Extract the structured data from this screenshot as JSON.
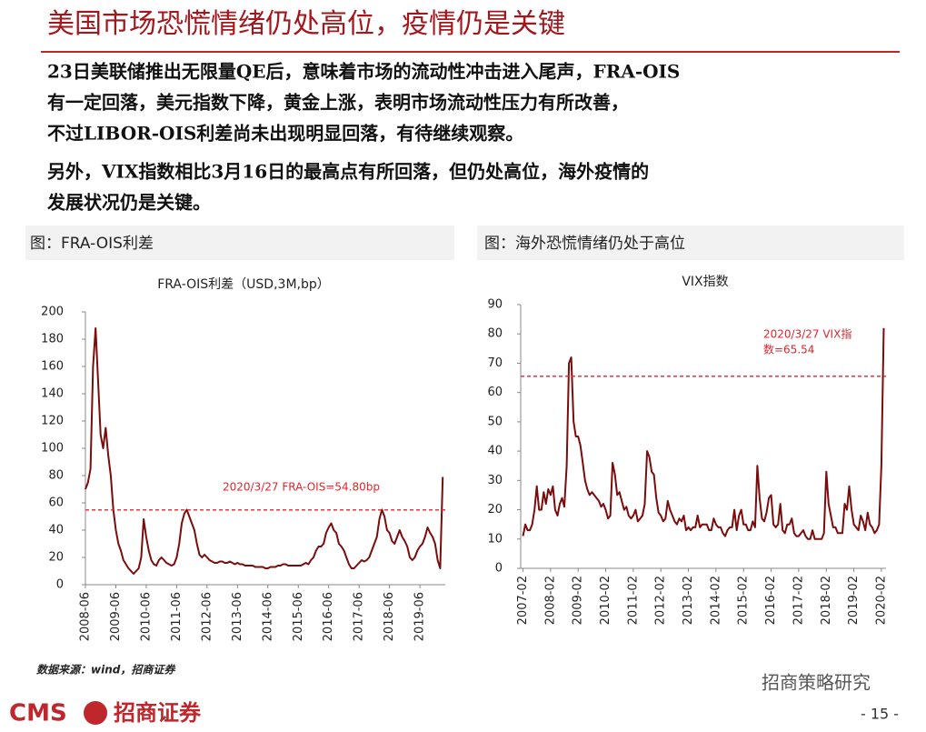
{
  "header": {
    "title": "美国市场恐慌情绪仍处高位，疫情仍是关键"
  },
  "body": [
    [
      "23日美联储推出无限量QE后，意味着市场的流动性冲击进入尾声，FRA-OIS",
      "有一定回落，美元指数下降，黄金上涨，表明市场流动性压力有所改善，",
      "不过LIBOR-OIS利差尚未出现明显回落，有待继续观察。"
    ],
    [
      "另外，VIX指数相比3月16日的最高点有所回落，但仍处高位，海外疫情的",
      "发展状况仍是关键。"
    ]
  ],
  "chart_data": [
    {
      "type": "line",
      "panel_title": "图：FRA-OIS利差",
      "title": "FRA-OIS利差（USD,3M,bp）",
      "x": [
        "2008-06",
        "2008-07",
        "2008-08",
        "2008-09",
        "2008-10",
        "2008-11",
        "2008-12",
        "2009-01",
        "2009-02",
        "2009-03",
        "2009-04",
        "2009-05",
        "2009-06",
        "2009-07",
        "2009-08",
        "2009-09",
        "2009-10",
        "2009-11",
        "2009-12",
        "2010-01",
        "2010-02",
        "2010-03",
        "2010-04",
        "2010-05",
        "2010-06",
        "2010-07",
        "2010-08",
        "2010-09",
        "2010-10",
        "2010-11",
        "2010-12",
        "2011-01",
        "2011-02",
        "2011-03",
        "2011-04",
        "2011-05",
        "2011-06",
        "2011-07",
        "2011-08",
        "2011-09",
        "2011-10",
        "2011-11",
        "2011-12",
        "2012-01",
        "2012-02",
        "2012-03",
        "2012-04",
        "2012-05",
        "2012-06",
        "2012-07",
        "2012-08",
        "2012-09",
        "2012-10",
        "2012-11",
        "2012-12",
        "2013-01",
        "2013-02",
        "2013-03",
        "2013-04",
        "2013-05",
        "2013-06",
        "2013-07",
        "2013-08",
        "2013-09",
        "2013-10",
        "2013-11",
        "2013-12",
        "2014-01",
        "2014-02",
        "2014-03",
        "2014-04",
        "2014-05",
        "2014-06",
        "2014-07",
        "2014-08",
        "2014-09",
        "2014-10",
        "2014-11",
        "2014-12",
        "2015-01",
        "2015-02",
        "2015-03",
        "2015-04",
        "2015-05",
        "2015-06",
        "2015-07",
        "2015-08",
        "2015-09",
        "2015-10",
        "2015-11",
        "2015-12",
        "2016-01",
        "2016-02",
        "2016-03",
        "2016-04",
        "2016-05",
        "2016-06",
        "2016-07",
        "2016-08",
        "2016-09",
        "2016-10",
        "2016-11",
        "2016-12",
        "2017-01",
        "2017-02",
        "2017-03",
        "2017-04",
        "2017-05",
        "2017-06",
        "2017-07",
        "2017-08",
        "2017-09",
        "2017-10",
        "2017-11",
        "2017-12",
        "2018-01",
        "2018-02",
        "2018-03",
        "2018-04",
        "2018-05",
        "2018-06",
        "2018-07",
        "2018-08",
        "2018-09",
        "2018-10",
        "2018-11",
        "2018-12",
        "2019-01",
        "2019-02",
        "2019-03",
        "2019-04",
        "2019-05",
        "2019-06",
        "2019-07",
        "2019-08",
        "2019-09",
        "2019-10",
        "2019-11",
        "2019-12",
        "2020-01",
        "2020-02",
        "2020-03"
      ],
      "series": [
        {
          "color": "#7b0c0c",
          "values": [
            70,
            75,
            85,
            160,
            188,
            150,
            110,
            100,
            115,
            95,
            80,
            55,
            40,
            30,
            25,
            18,
            15,
            12,
            10,
            8,
            10,
            12,
            20,
            48,
            35,
            25,
            18,
            15,
            14,
            18,
            20,
            18,
            16,
            15,
            14,
            15,
            20,
            30,
            45,
            52,
            55,
            50,
            45,
            40,
            30,
            22,
            20,
            22,
            20,
            18,
            17,
            16,
            16,
            17,
            17,
            16,
            16,
            17,
            16,
            15,
            16,
            15,
            15,
            14,
            14,
            14,
            14,
            13,
            13,
            13,
            13,
            12,
            12,
            13,
            13,
            13,
            14,
            14,
            15,
            15,
            14,
            14,
            14,
            14,
            14,
            14,
            15,
            16,
            15,
            18,
            20,
            25,
            28,
            28,
            30,
            38,
            42,
            45,
            40,
            38,
            30,
            28,
            25,
            20,
            15,
            12,
            12,
            14,
            16,
            18,
            17,
            18,
            20,
            25,
            30,
            35,
            48,
            55,
            50,
            40,
            38,
            32,
            30,
            35,
            40,
            35,
            32,
            28,
            20,
            18,
            20,
            25,
            28,
            30,
            35,
            42,
            38,
            35,
            30,
            18,
            12,
            79
          ]
        }
      ],
      "xlim": [
        "2008-06",
        "2020-04"
      ],
      "xticks": [
        "2008-06",
        "2009-06",
        "2010-06",
        "2011-06",
        "2012-06",
        "2013-06",
        "2014-06",
        "2015-06",
        "2016-06",
        "2017-06",
        "2018-06",
        "2019-06"
      ],
      "ylim": [
        0,
        200
      ],
      "yticks": [
        0,
        20,
        40,
        60,
        80,
        100,
        120,
        140,
        160,
        180,
        200
      ],
      "reference": {
        "value": 54.8,
        "color": "#e0262b",
        "label": [
          "2020/3/27 FRA-OIS=54.80bp"
        ]
      }
    },
    {
      "type": "line",
      "panel_title": "图：海外恐慌情绪仍处于高位",
      "title": "VIX指数",
      "x": [
        "2007-02",
        "2007-03",
        "2007-04",
        "2007-05",
        "2007-06",
        "2007-07",
        "2007-08",
        "2007-09",
        "2007-10",
        "2007-11",
        "2007-12",
        "2008-01",
        "2008-02",
        "2008-03",
        "2008-04",
        "2008-05",
        "2008-06",
        "2008-07",
        "2008-08",
        "2008-09",
        "2008-10",
        "2008-11",
        "2008-12",
        "2009-01",
        "2009-02",
        "2009-03",
        "2009-04",
        "2009-05",
        "2009-06",
        "2009-07",
        "2009-08",
        "2009-09",
        "2009-10",
        "2009-11",
        "2009-12",
        "2010-01",
        "2010-02",
        "2010-03",
        "2010-04",
        "2010-05",
        "2010-06",
        "2010-07",
        "2010-08",
        "2010-09",
        "2010-10",
        "2010-11",
        "2010-12",
        "2011-01",
        "2011-02",
        "2011-03",
        "2011-04",
        "2011-05",
        "2011-06",
        "2011-07",
        "2011-08",
        "2011-09",
        "2011-10",
        "2011-11",
        "2011-12",
        "2012-01",
        "2012-02",
        "2012-03",
        "2012-04",
        "2012-05",
        "2012-06",
        "2012-07",
        "2012-08",
        "2012-09",
        "2012-10",
        "2012-11",
        "2012-12",
        "2013-01",
        "2013-02",
        "2013-03",
        "2013-04",
        "2013-05",
        "2013-06",
        "2013-07",
        "2013-08",
        "2013-09",
        "2013-10",
        "2013-11",
        "2013-12",
        "2014-01",
        "2014-02",
        "2014-03",
        "2014-04",
        "2014-05",
        "2014-06",
        "2014-07",
        "2014-08",
        "2014-09",
        "2014-10",
        "2014-11",
        "2014-12",
        "2015-01",
        "2015-02",
        "2015-03",
        "2015-04",
        "2015-05",
        "2015-06",
        "2015-07",
        "2015-08",
        "2015-09",
        "2015-10",
        "2015-11",
        "2015-12",
        "2016-01",
        "2016-02",
        "2016-03",
        "2016-04",
        "2016-05",
        "2016-06",
        "2016-07",
        "2016-08",
        "2016-09",
        "2016-10",
        "2016-11",
        "2016-12",
        "2017-01",
        "2017-02",
        "2017-03",
        "2017-04",
        "2017-05",
        "2017-06",
        "2017-07",
        "2017-08",
        "2017-09",
        "2017-10",
        "2017-11",
        "2017-12",
        "2018-01",
        "2018-02",
        "2018-03",
        "2018-04",
        "2018-05",
        "2018-06",
        "2018-07",
        "2018-08",
        "2018-09",
        "2018-10",
        "2018-11",
        "2018-12",
        "2019-01",
        "2019-02",
        "2019-03",
        "2019-04",
        "2019-05",
        "2019-06",
        "2019-07",
        "2019-08",
        "2019-09",
        "2019-10",
        "2019-11",
        "2019-12",
        "2020-01",
        "2020-02",
        "2020-03"
      ],
      "series": [
        {
          "color": "#7b0c0c",
          "values": [
            11,
            15,
            13,
            13,
            15,
            20,
            28,
            20,
            20,
            26,
            22,
            27,
            25,
            28,
            20,
            18,
            22,
            24,
            21,
            35,
            70,
            72,
            50,
            45,
            45,
            42,
            36,
            30,
            27,
            25,
            26,
            25,
            24,
            23,
            21,
            22,
            20,
            17,
            18,
            36,
            32,
            25,
            26,
            23,
            20,
            21,
            18,
            17,
            18,
            20,
            16,
            17,
            18,
            22,
            40,
            38,
            33,
            32,
            24,
            19,
            18,
            16,
            17,
            23,
            20,
            18,
            16,
            15,
            17,
            16,
            18,
            13,
            14,
            13,
            14,
            14,
            18,
            14,
            15,
            15,
            15,
            13,
            13,
            17,
            15,
            14,
            14,
            12,
            11,
            13,
            14,
            14,
            20,
            13,
            18,
            20,
            15,
            15,
            13,
            13,
            16,
            14,
            35,
            24,
            17,
            16,
            19,
            24,
            25,
            15,
            14,
            15,
            22,
            13,
            12,
            15,
            15,
            17,
            12,
            11,
            11,
            12,
            13,
            11,
            10,
            10,
            13,
            10,
            10,
            10,
            10,
            12,
            33,
            22,
            18,
            14,
            14,
            12,
            12,
            12,
            22,
            20,
            28,
            20,
            15,
            14,
            13,
            18,
            16,
            13,
            19,
            15,
            14,
            12,
            13,
            15,
            35,
            82
          ]
        }
      ],
      "xlim": [
        "2007-01",
        "2020-04"
      ],
      "xticks": [
        "2007-02",
        "2008-02",
        "2009-02",
        "2010-02",
        "2011-02",
        "2012-02",
        "2013-02",
        "2014-02",
        "2015-02",
        "2016-02",
        "2017-02",
        "2018-02",
        "2019-02",
        "2020-02"
      ],
      "ylim": [
        0,
        90
      ],
      "yticks": [
        0,
        10,
        20,
        30,
        40,
        50,
        60,
        70,
        80,
        90
      ],
      "reference": {
        "value": 65.54,
        "color": "#e0262b",
        "label": [
          "2020/3/27 VIX指",
          "数=65.54"
        ]
      }
    }
  ],
  "footer": {
    "source": "数据来源：wind，招商证券",
    "logo": "CMS",
    "company": "招商证券",
    "watermark": "招商策略研究",
    "page": "- 15 -"
  }
}
